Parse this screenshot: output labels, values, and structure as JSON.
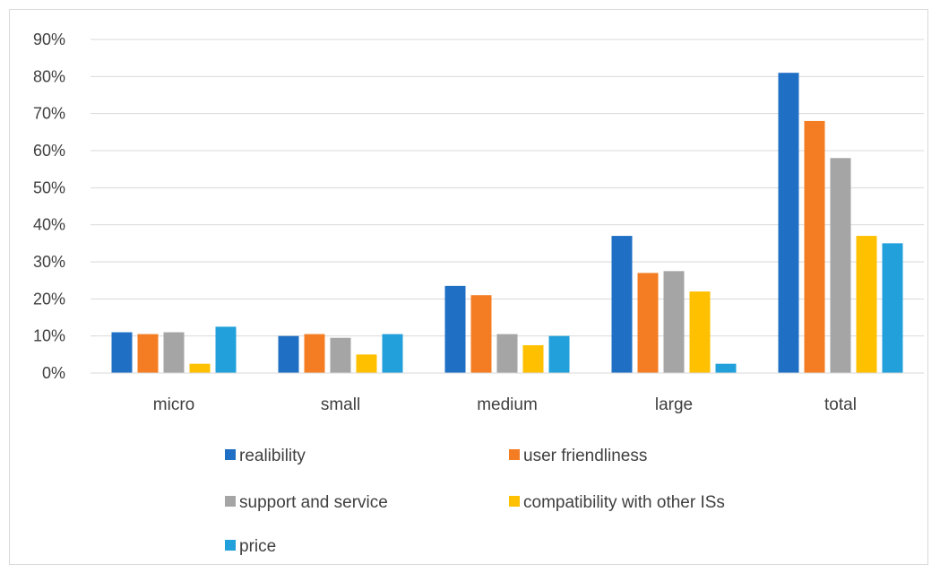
{
  "chart_data": {
    "type": "bar",
    "categories": [
      "micro",
      "small",
      "medium",
      "large",
      "total"
    ],
    "series": [
      {
        "name": "realibility",
        "color": "#1f6fc5",
        "values": [
          11,
          10,
          23.5,
          37,
          81
        ]
      },
      {
        "name": "user friendliness",
        "color": "#f47d23",
        "values": [
          10.5,
          10.5,
          21,
          27,
          68
        ]
      },
      {
        "name": "support and service",
        "color": "#a5a5a5",
        "values": [
          11,
          9.5,
          10.5,
          27.5,
          58
        ]
      },
      {
        "name": "compatibility with other ISs",
        "color": "#ffc000",
        "values": [
          2.5,
          5,
          7.5,
          22,
          37
        ]
      },
      {
        "name": "price",
        "color": "#21a0db",
        "values": [
          12.5,
          10.5,
          10,
          2.5,
          35
        ]
      }
    ],
    "y_ticks": [
      "0%",
      "10%",
      "20%",
      "30%",
      "40%",
      "50%",
      "60%",
      "70%",
      "80%",
      "90%"
    ],
    "ylim": [
      0,
      90
    ],
    "grid": true,
    "legend_placement": "bottom"
  }
}
